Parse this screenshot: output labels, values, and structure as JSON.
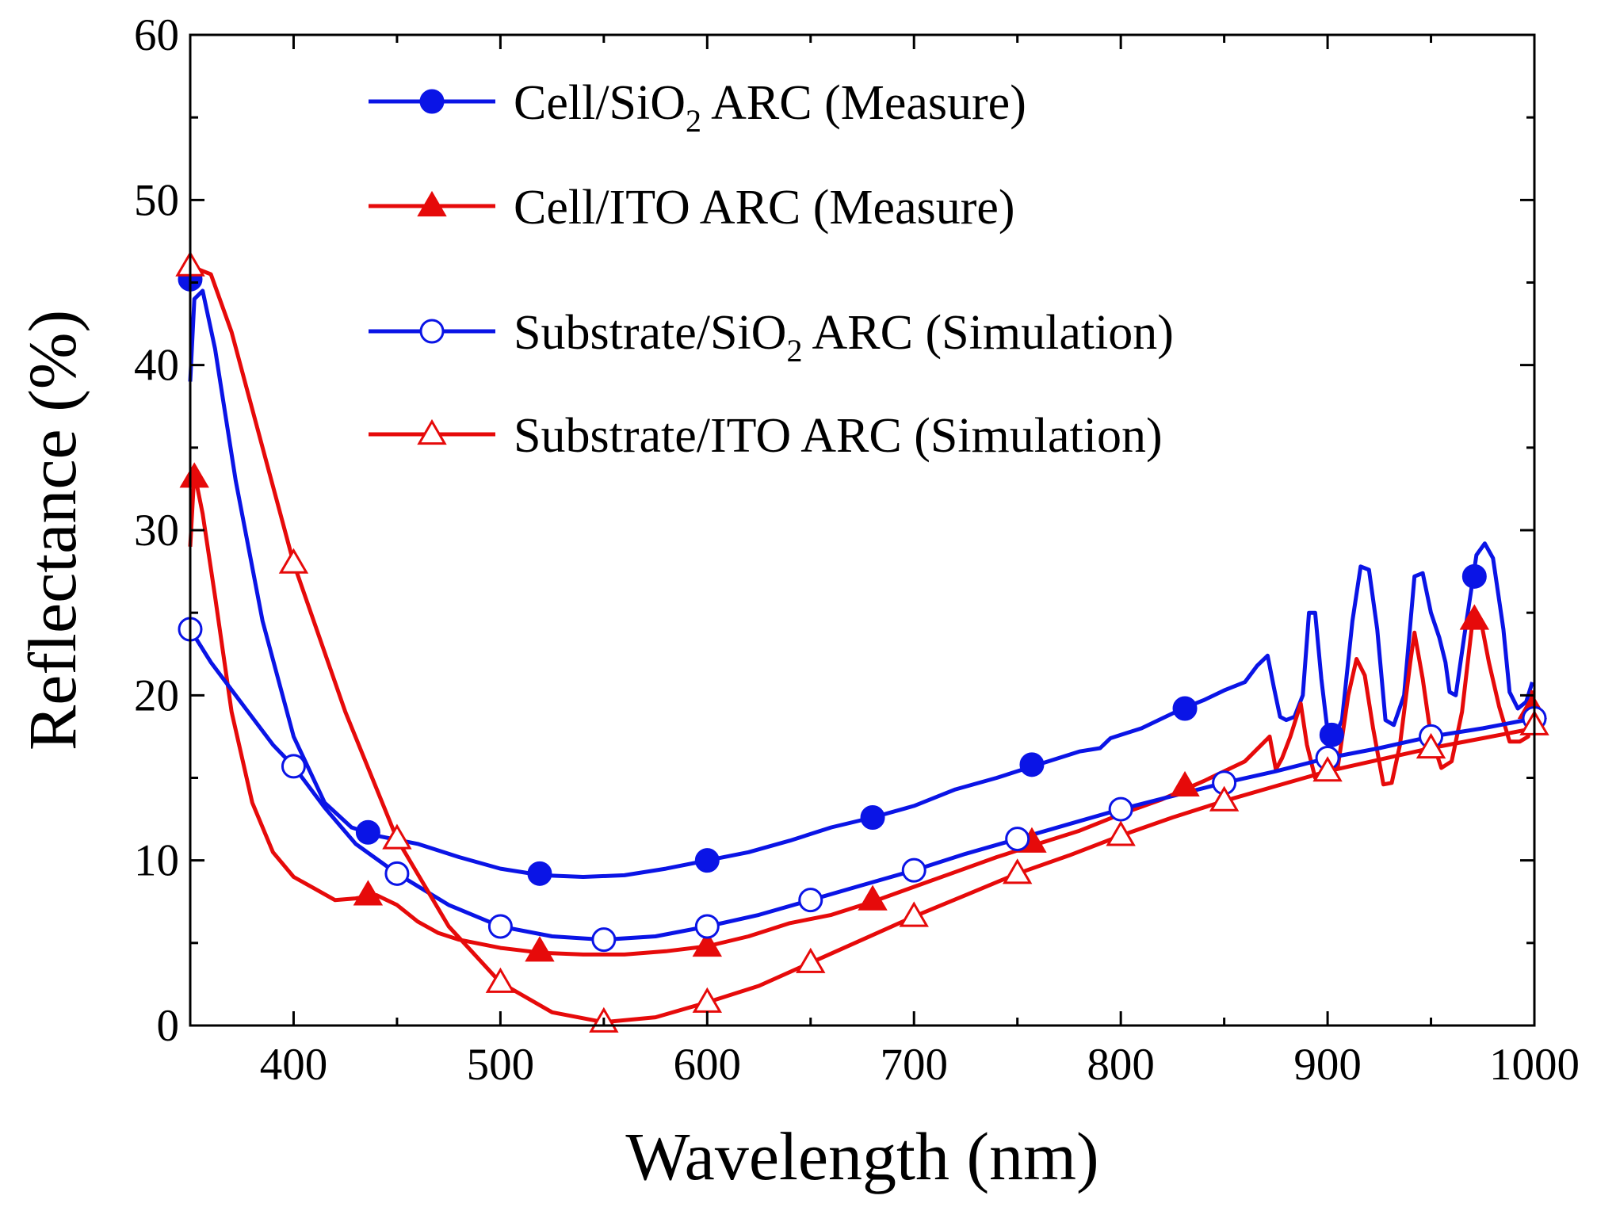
{
  "chart_data": {
    "type": "line",
    "xlabel": "Wavelength (nm)",
    "ylabel": "Reflectance (%)",
    "xlim": [
      350,
      1000
    ],
    "ylim": [
      0,
      60
    ],
    "xticks": [
      400,
      500,
      600,
      700,
      800,
      900,
      1000
    ],
    "yticks": [
      0,
      10,
      20,
      30,
      40,
      50,
      60
    ],
    "grid": false,
    "legend_position": "top",
    "series": [
      {
        "name": "Cell/SiO2 ARC (Measure)",
        "legend_main": "Cell/SiO",
        "legend_sub": "2",
        "legend_rest": " ARC (Measure)",
        "color": "#0a14e6",
        "marker": "circle-filled",
        "line": [
          [
            350,
            39
          ],
          [
            352,
            44
          ],
          [
            356,
            44.5
          ],
          [
            362,
            41
          ],
          [
            372,
            33
          ],
          [
            385,
            24.5
          ],
          [
            400,
            17.5
          ],
          [
            415,
            13.5
          ],
          [
            428,
            12
          ],
          [
            440,
            11.5
          ],
          [
            460,
            11
          ],
          [
            480,
            10.2
          ],
          [
            500,
            9.5
          ],
          [
            520,
            9.1
          ],
          [
            540,
            9
          ],
          [
            560,
            9.1
          ],
          [
            580,
            9.5
          ],
          [
            600,
            10
          ],
          [
            620,
            10.5
          ],
          [
            640,
            11.2
          ],
          [
            660,
            12
          ],
          [
            680,
            12.6
          ],
          [
            700,
            13.3
          ],
          [
            720,
            14.3
          ],
          [
            740,
            15
          ],
          [
            760,
            15.8
          ],
          [
            780,
            16.6
          ],
          [
            790,
            16.8
          ],
          [
            795,
            17.4
          ],
          [
            800,
            17.6
          ],
          [
            810,
            18
          ],
          [
            820,
            18.6
          ],
          [
            830,
            19.2
          ],
          [
            840,
            19.7
          ],
          [
            850,
            20.3
          ],
          [
            860,
            20.8
          ],
          [
            866,
            21.8
          ],
          [
            871,
            22.4
          ],
          [
            874,
            20.5
          ],
          [
            877,
            18.7
          ],
          [
            880,
            18.5
          ],
          [
            884,
            18.7
          ],
          [
            888,
            20
          ],
          [
            891,
            25
          ],
          [
            894,
            25
          ],
          [
            897,
            21
          ],
          [
            900,
            17.8
          ],
          [
            903,
            17.4
          ],
          [
            907,
            18.5
          ],
          [
            912,
            24.5
          ],
          [
            916,
            27.8
          ],
          [
            920,
            27.6
          ],
          [
            924,
            24
          ],
          [
            928,
            18.5
          ],
          [
            932,
            18.2
          ],
          [
            937,
            20
          ],
          [
            942,
            27.2
          ],
          [
            946,
            27.4
          ],
          [
            950,
            25
          ],
          [
            954,
            23.5
          ],
          [
            957,
            22
          ],
          [
            959,
            20.2
          ],
          [
            962,
            20
          ],
          [
            966,
            23.5
          ],
          [
            972,
            28.5
          ],
          [
            976,
            29.2
          ],
          [
            980,
            28.3
          ],
          [
            985,
            24
          ],
          [
            988,
            20.2
          ],
          [
            992,
            19.2
          ],
          [
            996,
            19.6
          ],
          [
            999,
            20.8
          ]
        ],
        "markers": [
          [
            350,
            45.2
          ],
          [
            436,
            11.7
          ],
          [
            519,
            9.2
          ],
          [
            600,
            10
          ],
          [
            757,
            15.8
          ],
          [
            680,
            12.6
          ],
          [
            831,
            19.2
          ],
          [
            902,
            17.6
          ],
          [
            971,
            27.2
          ]
        ]
      },
      {
        "name": "Cell/ITO ARC (Measure)",
        "legend_main": "Cell/ITO ARC (Measure)",
        "legend_sub": "",
        "legend_rest": "",
        "color": "#e60a0a",
        "marker": "triangle-filled",
        "line": [
          [
            350,
            29
          ],
          [
            352,
            33.5
          ],
          [
            356,
            31
          ],
          [
            362,
            26
          ],
          [
            370,
            19
          ],
          [
            380,
            13.5
          ],
          [
            390,
            10.5
          ],
          [
            400,
            9
          ],
          [
            410,
            8.3
          ],
          [
            420,
            7.6
          ],
          [
            430,
            7.7
          ],
          [
            440,
            7.9
          ],
          [
            450,
            7.3
          ],
          [
            460,
            6.3
          ],
          [
            470,
            5.6
          ],
          [
            480,
            5.2
          ],
          [
            500,
            4.7
          ],
          [
            520,
            4.4
          ],
          [
            540,
            4.3
          ],
          [
            560,
            4.3
          ],
          [
            580,
            4.5
          ],
          [
            600,
            4.8
          ],
          [
            620,
            5.4
          ],
          [
            640,
            6.2
          ],
          [
            660,
            6.7
          ],
          [
            680,
            7.5
          ],
          [
            700,
            8.4
          ],
          [
            720,
            9.3
          ],
          [
            740,
            10.2
          ],
          [
            760,
            11
          ],
          [
            780,
            11.8
          ],
          [
            800,
            12.8
          ],
          [
            820,
            13.7
          ],
          [
            840,
            14.8
          ],
          [
            860,
            16
          ],
          [
            868,
            17
          ],
          [
            872,
            17.5
          ],
          [
            875,
            15.5
          ],
          [
            878,
            16.2
          ],
          [
            882,
            17.5
          ],
          [
            887,
            19.5
          ],
          [
            890,
            17
          ],
          [
            894,
            15
          ],
          [
            897,
            15.2
          ],
          [
            900,
            15.2
          ],
          [
            905,
            15.7
          ],
          [
            910,
            20
          ],
          [
            914,
            22.2
          ],
          [
            918,
            21.2
          ],
          [
            922,
            18
          ],
          [
            927,
            14.6
          ],
          [
            931,
            14.7
          ],
          [
            935,
            17
          ],
          [
            940,
            22
          ],
          [
            942,
            23.8
          ],
          [
            946,
            21
          ],
          [
            950,
            17.5
          ],
          [
            955,
            15.6
          ],
          [
            960,
            16
          ],
          [
            965,
            19
          ],
          [
            970,
            24.4
          ],
          [
            974,
            24.6
          ],
          [
            978,
            22
          ],
          [
            983,
            19.3
          ],
          [
            988,
            17.2
          ],
          [
            993,
            17.2
          ],
          [
            997,
            17.5
          ],
          [
            999,
            20.3
          ]
        ],
        "markers": [
          [
            352,
            33.2
          ],
          [
            436,
            7.9
          ],
          [
            519,
            4.5
          ],
          [
            600,
            4.8
          ],
          [
            680,
            7.6
          ],
          [
            757,
            11.1
          ],
          [
            831,
            14.5
          ],
          [
            971,
            24.6
          ],
          [
            999,
            19.2
          ]
        ]
      },
      {
        "name": "Substrate/SiO2 ARC (Simulation)",
        "legend_main": "Substrate/SiO",
        "legend_sub": "2",
        "legend_rest": " ARC (Simulation)",
        "color": "#0a14e6",
        "marker": "circle-open",
        "line": [
          [
            350,
            24
          ],
          [
            360,
            22
          ],
          [
            375,
            19.5
          ],
          [
            390,
            17
          ],
          [
            400,
            15.7
          ],
          [
            415,
            13.2
          ],
          [
            430,
            11
          ],
          [
            450,
            9.2
          ],
          [
            475,
            7.3
          ],
          [
            500,
            6
          ],
          [
            525,
            5.4
          ],
          [
            550,
            5.2
          ],
          [
            575,
            5.4
          ],
          [
            600,
            6
          ],
          [
            625,
            6.7
          ],
          [
            650,
            7.6
          ],
          [
            675,
            8.5
          ],
          [
            700,
            9.4
          ],
          [
            725,
            10.4
          ],
          [
            750,
            11.3
          ],
          [
            775,
            12.2
          ],
          [
            800,
            13.1
          ],
          [
            825,
            13.9
          ],
          [
            850,
            14.7
          ],
          [
            875,
            15.4
          ],
          [
            900,
            16.2
          ],
          [
            925,
            16.8
          ],
          [
            950,
            17.5
          ],
          [
            975,
            18
          ],
          [
            1000,
            18.6
          ]
        ],
        "markers": [
          [
            350,
            24
          ],
          [
            400,
            15.7
          ],
          [
            450,
            9.2
          ],
          [
            500,
            6
          ],
          [
            550,
            5.2
          ],
          [
            600,
            6
          ],
          [
            650,
            7.6
          ],
          [
            700,
            9.4
          ],
          [
            750,
            11.3
          ],
          [
            800,
            13.1
          ],
          [
            850,
            14.7
          ],
          [
            900,
            16.2
          ],
          [
            950,
            17.5
          ],
          [
            1000,
            18.6
          ]
        ]
      },
      {
        "name": "Substrate/ITO ARC (Simulation)",
        "legend_main": "Substrate/ITO ARC (Simulation)",
        "legend_sub": "",
        "legend_rest": "",
        "color": "#e60a0a",
        "marker": "triangle-open",
        "line": [
          [
            350,
            46
          ],
          [
            360,
            45.5
          ],
          [
            370,
            42
          ],
          [
            385,
            35
          ],
          [
            400,
            28
          ],
          [
            425,
            19
          ],
          [
            450,
            11.3
          ],
          [
            475,
            6
          ],
          [
            500,
            2.6
          ],
          [
            525,
            0.8
          ],
          [
            550,
            0.2
          ],
          [
            575,
            0.5
          ],
          [
            600,
            1.4
          ],
          [
            625,
            2.4
          ],
          [
            650,
            3.8
          ],
          [
            675,
            5.2
          ],
          [
            700,
            6.6
          ],
          [
            725,
            7.9
          ],
          [
            750,
            9.2
          ],
          [
            775,
            10.3
          ],
          [
            800,
            11.5
          ],
          [
            825,
            12.6
          ],
          [
            850,
            13.6
          ],
          [
            875,
            14.5
          ],
          [
            900,
            15.4
          ],
          [
            925,
            16.1
          ],
          [
            950,
            16.8
          ],
          [
            975,
            17.4
          ],
          [
            1000,
            18
          ]
        ],
        "markers": [
          [
            350,
            46
          ],
          [
            400,
            28
          ],
          [
            450,
            11.3
          ],
          [
            500,
            2.6
          ],
          [
            550,
            0.2
          ],
          [
            600,
            1.4
          ],
          [
            650,
            3.8
          ],
          [
            700,
            6.6
          ],
          [
            750,
            9.2
          ],
          [
            800,
            11.5
          ],
          [
            850,
            13.6
          ],
          [
            900,
            15.4
          ],
          [
            950,
            16.8
          ],
          [
            1000,
            18.2
          ]
        ]
      }
    ]
  }
}
